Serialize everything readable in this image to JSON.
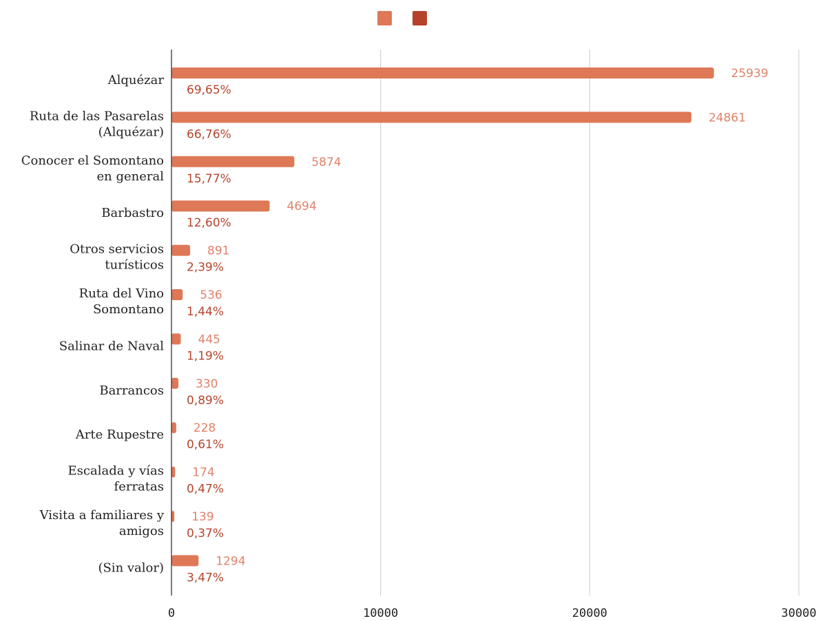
{
  "chart_data": {
    "type": "bar",
    "orientation": "horizontal",
    "title": "",
    "xlabel": "",
    "ylabel": "",
    "xlim": [
      0,
      30000
    ],
    "x_ticks": [
      0,
      10000,
      20000,
      30000
    ],
    "grid": true,
    "legend_position": "top-center",
    "categories": [
      [
        "Alquézar"
      ],
      [
        "Ruta de las Pasarelas",
        "(Alquézar)"
      ],
      [
        "Conocer el Somontano",
        "en general"
      ],
      [
        "Barbastro"
      ],
      [
        "Otros servicios",
        "turísticos"
      ],
      [
        "Ruta del Vino",
        "Somontano"
      ],
      [
        "Salinar de Naval"
      ],
      [
        "Barrancos"
      ],
      [
        "Arte Rupestre"
      ],
      [
        "Escalada y vías",
        "ferratas"
      ],
      [
        "Visita a familiares y",
        "amigos"
      ],
      [
        "(Sin valor)"
      ]
    ],
    "series": [
      {
        "color": "#de7857",
        "label_color": "#e0826a",
        "values": [
          25939,
          24861,
          5874,
          4694,
          891,
          536,
          445,
          330,
          228,
          174,
          139,
          1294
        ]
      },
      {
        "color": "#b5432a",
        "label_color": "#b4452d",
        "values": [
          "69,65%",
          "66,76%",
          "15,77%",
          "12,60%",
          "2,39%",
          "1,44%",
          "1,19%",
          "0,89%",
          "0,61%",
          "0,47%",
          "0,37%",
          "3,47%"
        ]
      }
    ]
  }
}
